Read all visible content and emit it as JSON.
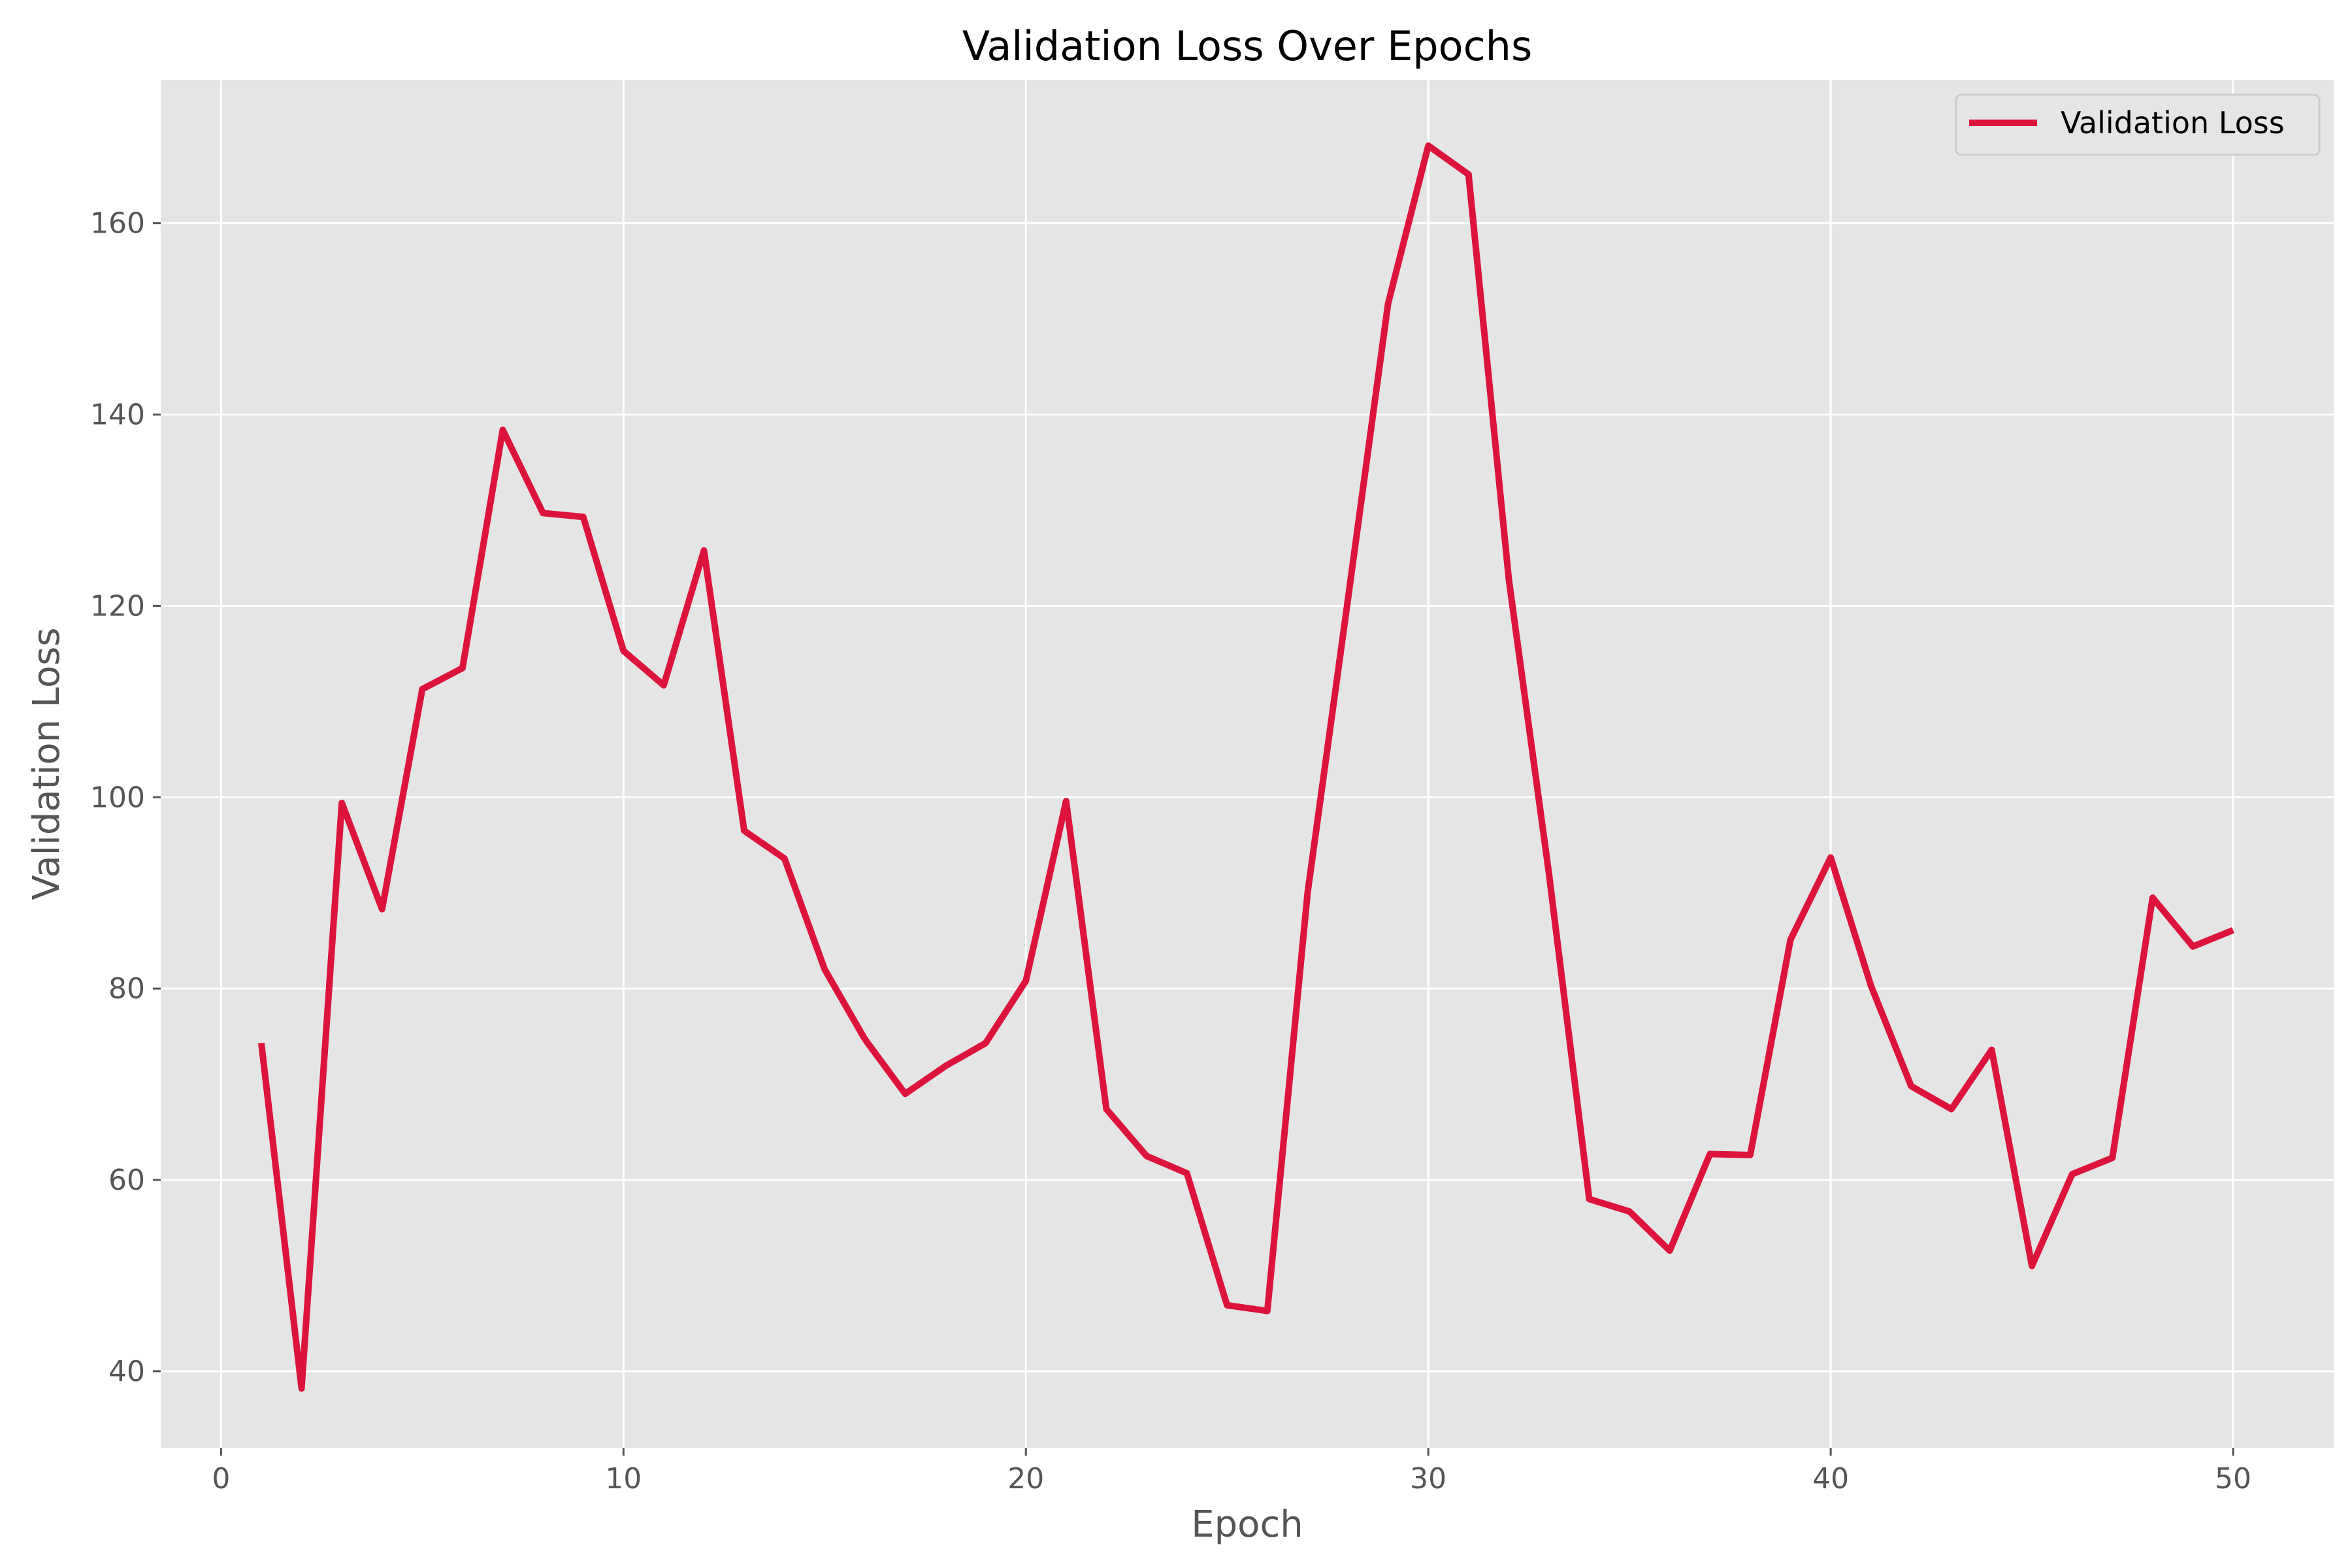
{
  "chart_data": {
    "type": "line",
    "title": "Validation Loss Over Epochs",
    "xlabel": "Epoch",
    "ylabel": "Validation Loss",
    "xlim": [
      -1.5,
      52.5
    ],
    "ylim": [
      32,
      175
    ],
    "xticks": [
      0,
      10,
      20,
      30,
      40,
      50
    ],
    "yticks": [
      40,
      60,
      80,
      100,
      120,
      140,
      160
    ],
    "grid": true,
    "legend_position": "top-right",
    "series": [
      {
        "name": "Validation Loss",
        "color": "#DC143C",
        "x": [
          1,
          2,
          3,
          4,
          5,
          6,
          7,
          8,
          9,
          10,
          11,
          12,
          13,
          14,
          15,
          16,
          17,
          18,
          19,
          20,
          21,
          22,
          23,
          24,
          25,
          26,
          27,
          28,
          29,
          30,
          31,
          32,
          33,
          34,
          35,
          36,
          37,
          38,
          39,
          40,
          41,
          42,
          43,
          44,
          45,
          46,
          47,
          48,
          49,
          50
        ],
        "y": [
          74.3,
          38.2,
          99.4,
          88.3,
          111.3,
          113.5,
          138.4,
          129.7,
          129.3,
          115.3,
          111.7,
          125.8,
          96.5,
          93.6,
          82.0,
          74.7,
          69.0,
          71.9,
          74.3,
          80.8,
          99.6,
          67.4,
          62.5,
          60.7,
          46.9,
          46.3,
          90.0,
          120.6,
          151.6,
          168.1,
          165.1,
          122.8,
          92.0,
          58.0,
          56.7,
          52.6,
          62.7,
          62.6,
          85.1,
          93.7,
          80.3,
          69.8,
          67.4,
          73.6,
          51.0,
          60.6,
          62.3,
          89.5,
          84.4,
          86.1
        ]
      }
    ]
  }
}
